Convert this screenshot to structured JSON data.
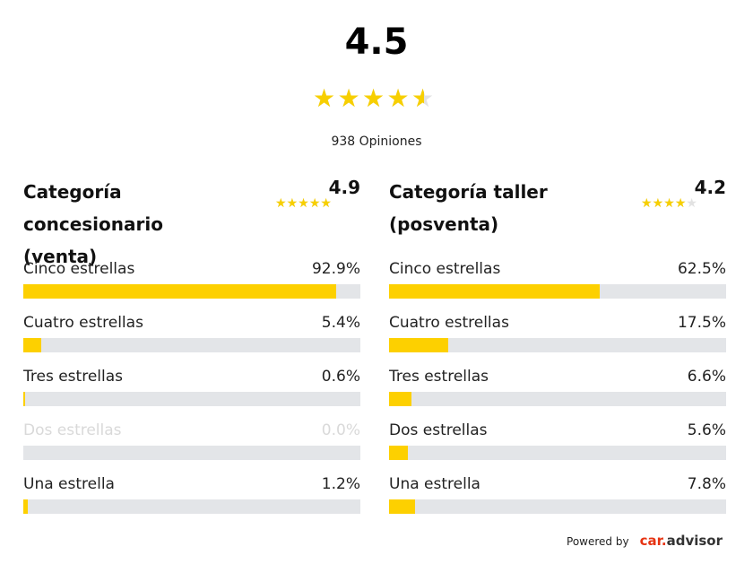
{
  "overall": {
    "score": "4.5",
    "rating": 4.5,
    "max_stars": 5,
    "reviews_label": "938 Opiniones"
  },
  "categories": [
    {
      "title_line1": "Categoría concesionario",
      "title_line2": "(venta)",
      "score": "4.9",
      "rating": 4.9,
      "rows": [
        {
          "label": "Cinco estrellas",
          "pct_text": "92.9%",
          "pct": 92.9
        },
        {
          "label": "Cuatro estrellas",
          "pct_text": "5.4%",
          "pct": 5.4
        },
        {
          "label": "Tres estrellas",
          "pct_text": "0.6%",
          "pct": 0.6
        },
        {
          "label": "Dos estrellas",
          "pct_text": "0.0%",
          "pct": 0.0
        },
        {
          "label": "Una estrella",
          "pct_text": "1.2%",
          "pct": 1.2
        }
      ]
    },
    {
      "title_line1": "Categoría taller",
      "title_line2": "(posventa)",
      "score": "4.2",
      "rating": 4.2,
      "rows": [
        {
          "label": "Cinco estrellas",
          "pct_text": "62.5%",
          "pct": 62.5
        },
        {
          "label": "Cuatro estrellas",
          "pct_text": "17.5%",
          "pct": 17.5
        },
        {
          "label": "Tres estrellas",
          "pct_text": "6.6%",
          "pct": 6.6
        },
        {
          "label": "Dos estrellas",
          "pct_text": "5.6%",
          "pct": 5.6
        },
        {
          "label": "Una estrella",
          "pct_text": "7.8%",
          "pct": 7.8
        }
      ]
    }
  ],
  "powered_by": {
    "label": "Powered by",
    "logo_car": "car",
    "logo_dot": ".",
    "logo_advisor": "advisor"
  },
  "colors": {
    "star_filled": "#f7cf00",
    "star_empty": "#e2e2e2",
    "bar_fill": "#fdd000",
    "bar_track": "#e3e5e8",
    "brand_red": "#e63312"
  },
  "icons": {
    "star": "star-icon"
  }
}
